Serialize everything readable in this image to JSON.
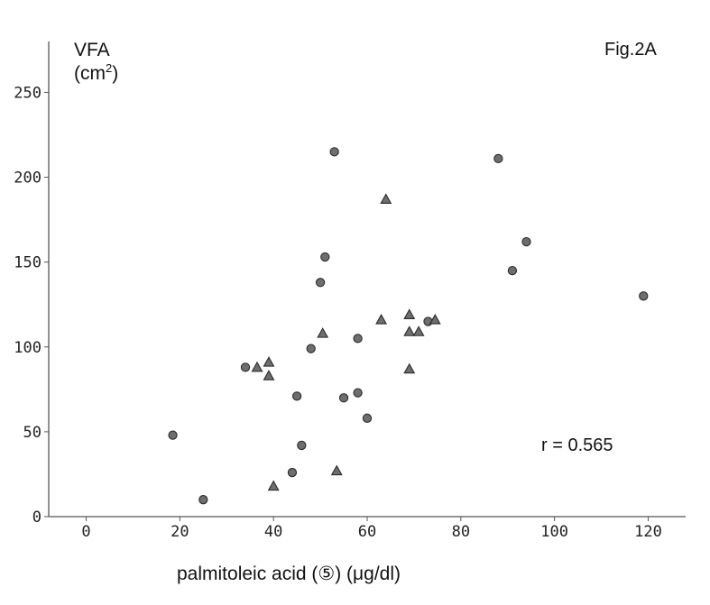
{
  "chart_data": {
    "type": "scatter",
    "title": "",
    "figure_label": "Fig.2A",
    "ylabel_line1": "VFA",
    "ylabel_unit_base": "(cm",
    "ylabel_unit_exp": "2",
    "ylabel_unit_close": ")",
    "xlabel": "palmitoleic acid (⑤) (μg/dl)",
    "annotation": "r = 0.565",
    "xlim": [
      -8,
      128
    ],
    "ylim": [
      0,
      280
    ],
    "x_ticks": [
      "0",
      "20",
      "40",
      "60",
      "80",
      "100",
      "120"
    ],
    "y_ticks": [
      "0",
      "50",
      "100",
      "150",
      "200",
      "250"
    ],
    "grid": false,
    "marker_colors": {
      "fill": "#6e6e6e",
      "stroke": "#2b2b2b"
    },
    "series": [
      {
        "marker": "circle",
        "points": [
          [
            18.5,
            48
          ],
          [
            25,
            10
          ],
          [
            34,
            88
          ],
          [
            44,
            26
          ],
          [
            45,
            71
          ],
          [
            46,
            42
          ],
          [
            48,
            99
          ],
          [
            50,
            138
          ],
          [
            51,
            153
          ],
          [
            53,
            215
          ],
          [
            55,
            70
          ],
          [
            58,
            73
          ],
          [
            58,
            105
          ],
          [
            60,
            58
          ],
          [
            73,
            115
          ],
          [
            88,
            211
          ],
          [
            91,
            145
          ],
          [
            94,
            162
          ],
          [
            119,
            130
          ]
        ]
      },
      {
        "marker": "triangle",
        "points": [
          [
            36.5,
            88
          ],
          [
            39,
            91
          ],
          [
            39,
            83
          ],
          [
            40,
            18
          ],
          [
            50.5,
            108
          ],
          [
            53.5,
            27
          ],
          [
            63,
            116
          ],
          [
            64,
            187
          ],
          [
            69,
            119
          ],
          [
            69,
            109
          ],
          [
            69,
            87
          ],
          [
            71,
            109
          ],
          [
            74.5,
            116
          ]
        ]
      }
    ]
  }
}
